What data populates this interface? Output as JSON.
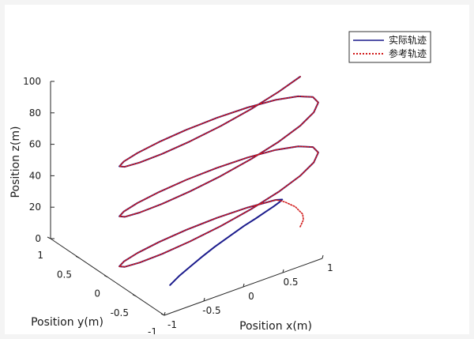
{
  "chart_data": {
    "type": "line3d",
    "title": "",
    "xlabel": "Position x(m)",
    "ylabel": "Position y(m)",
    "zlabel": "Position z(m)",
    "xlim": [
      -1,
      1
    ],
    "ylim": [
      -1,
      1
    ],
    "zlim": [
      0,
      100
    ],
    "xticks": [
      "-1",
      "-0.5",
      "0",
      "0.5",
      "1"
    ],
    "yticks": [
      "-1",
      "-0.5",
      "0",
      "0.5",
      "1"
    ],
    "zticks": [
      "0",
      "20",
      "40",
      "60",
      "80",
      "100"
    ],
    "grid": false,
    "legend_position": "top-right",
    "series": [
      {
        "name": "实际轨迹",
        "color": "#1b1b8c",
        "style": "solid",
        "x": [
          -0.6,
          -0.58,
          -0.53,
          -0.47,
          -0.4,
          -0.3,
          -0.2,
          -0.12,
          -0.06,
          0.0,
          0.05,
          0.08,
          0.0,
          -0.31,
          -0.59,
          -0.81,
          -0.95,
          -1.0,
          -0.95,
          -0.81,
          -0.59,
          -0.31,
          0.0,
          0.31,
          0.59,
          0.81,
          0.95,
          1.0,
          0.95,
          0.81,
          0.59,
          0.31,
          0.0,
          -0.31,
          -0.59,
          -0.81,
          -0.95,
          -1.0,
          -0.95,
          -0.81,
          -0.59,
          -0.31,
          0.0,
          0.31,
          0.59,
          0.81,
          0.95,
          1.0,
          0.95,
          0.81,
          0.59,
          0.31,
          0.0,
          -0.31,
          -0.59,
          -0.81,
          -0.95,
          -1.0,
          -0.95,
          -0.81,
          -0.59,
          -0.31,
          0.0,
          0.31,
          0.59,
          0.81,
          0.95,
          1.0
        ],
        "y": [
          0.0,
          0.13,
          0.26,
          0.38,
          0.5,
          0.62,
          0.73,
          0.82,
          0.9,
          0.96,
          0.99,
          1.0,
          1.0,
          0.95,
          0.81,
          0.59,
          0.31,
          0.0,
          -0.31,
          -0.59,
          -0.81,
          -0.95,
          -1.0,
          -0.95,
          -0.81,
          -0.59,
          -0.31,
          0.0,
          0.31,
          0.59,
          0.81,
          0.95,
          1.0,
          0.95,
          0.81,
          0.59,
          0.31,
          0.0,
          -0.31,
          -0.59,
          -0.81,
          -0.95,
          -1.0,
          -0.95,
          -0.81,
          -0.59,
          -0.31,
          0.0,
          0.31,
          0.59,
          0.81,
          0.95,
          1.0,
          0.95,
          0.81,
          0.59,
          0.31,
          0.0,
          -0.31,
          -0.59,
          -0.81,
          -0.95,
          -1.0,
          -0.95,
          -0.81,
          -0.59,
          -0.31,
          0.0
        ],
        "z": [
          0,
          2,
          4,
          6,
          8,
          10,
          12,
          13,
          14,
          15,
          16,
          17,
          18,
          19.5,
          21,
          22.5,
          24,
          25.5,
          27,
          28.5,
          30,
          31.5,
          33,
          34.5,
          36,
          37.5,
          39,
          40.5,
          42,
          43.5,
          45,
          46.5,
          48,
          49.5,
          51,
          52.5,
          54,
          55.5,
          57,
          58.5,
          60,
          61.5,
          63,
          64.5,
          66,
          67.5,
          69,
          70.5,
          72,
          73.5,
          75,
          76.5,
          78,
          79.5,
          81,
          82.5,
          84,
          85.5,
          87,
          88.5,
          90,
          91.5,
          93,
          94.5,
          96,
          97.5,
          99,
          100
        ]
      },
      {
        "name": "参考轨迹",
        "color": "#d11a1a",
        "style": "dotted",
        "x": [
          1.0,
          0.9,
          0.75,
          0.6,
          0.45,
          0.3,
          0.18,
          0.08,
          0.0,
          -0.31,
          -0.59,
          -0.81,
          -0.95,
          -1.0,
          -0.95,
          -0.81,
          -0.59,
          -0.31,
          0.0,
          0.31,
          0.59,
          0.81,
          0.95,
          1.0,
          0.95,
          0.81,
          0.59,
          0.31,
          0.0,
          -0.31,
          -0.59,
          -0.81,
          -0.95,
          -1.0,
          -0.95,
          -0.81,
          -0.59,
          -0.31,
          0.0,
          0.31,
          0.59,
          0.81,
          0.95,
          1.0,
          0.95,
          0.81,
          0.59,
          0.31,
          0.0,
          -0.31,
          -0.59,
          -0.81,
          -0.95,
          -1.0,
          -0.95,
          -0.81,
          -0.59,
          -0.31,
          0.0,
          0.31,
          0.59,
          0.81,
          0.95,
          1.0
        ],
        "y": [
          0.0,
          0.2,
          0.4,
          0.55,
          0.7,
          0.82,
          0.91,
          0.97,
          1.0,
          0.95,
          0.81,
          0.59,
          0.31,
          0.0,
          -0.31,
          -0.59,
          -0.81,
          -0.95,
          -1.0,
          -0.95,
          -0.81,
          -0.59,
          -0.31,
          0.0,
          0.31,
          0.59,
          0.81,
          0.95,
          1.0,
          0.95,
          0.81,
          0.59,
          0.31,
          0.0,
          -0.31,
          -0.59,
          -0.81,
          -0.95,
          -1.0,
          -0.95,
          -0.81,
          -0.59,
          -0.31,
          0.0,
          0.31,
          0.59,
          0.81,
          0.95,
          1.0,
          0.95,
          0.81,
          0.59,
          0.31,
          0.0,
          -0.31,
          -0.59,
          -0.81,
          -0.95,
          -1.0,
          -0.95,
          -0.81,
          -0.59,
          -0.31,
          0.0
        ],
        "z": [
          10,
          11,
          12,
          13,
          14,
          15,
          16,
          17,
          18,
          19.5,
          21,
          22.5,
          24,
          25.5,
          27,
          28.5,
          30,
          31.5,
          33,
          34.5,
          36,
          37.5,
          39,
          40.5,
          42,
          43.5,
          45,
          46.5,
          48,
          49.5,
          51,
          52.5,
          54,
          55.5,
          57,
          58.5,
          60,
          61.5,
          63,
          64.5,
          66,
          67.5,
          69,
          70.5,
          72,
          73.5,
          75,
          76.5,
          78,
          79.5,
          81,
          82.5,
          84,
          85.5,
          87,
          88.5,
          90,
          91.5,
          93,
          94.5,
          96,
          97.5,
          99,
          100
        ]
      }
    ]
  }
}
